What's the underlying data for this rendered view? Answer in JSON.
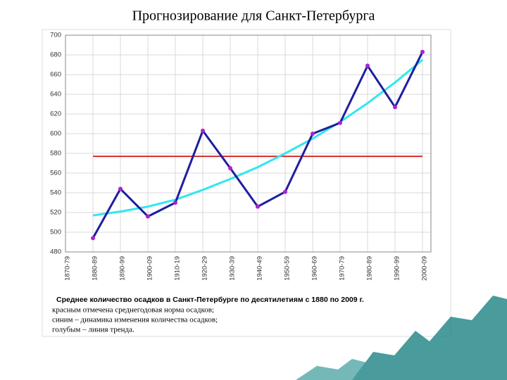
{
  "title": "Прогнозирование для Санкт-Петербурга",
  "chart_data": {
    "type": "line",
    "categories": [
      "1870-79",
      "1880-89",
      "1890-99",
      "1900-09",
      "1910-19",
      "1920-29",
      "1930-39",
      "1940-49",
      "1950-59",
      "1960-69",
      "1970-79",
      "1980-89",
      "1990-99",
      "2000-09"
    ],
    "series": [
      {
        "color": "#d42020",
        "values": [
          null,
          577,
          577,
          577,
          577,
          577,
          577,
          577,
          577,
          577,
          577,
          577,
          577,
          577
        ]
      },
      {
        "color": "#33e6f0",
        "values": [
          null,
          517,
          521,
          526,
          533,
          543,
          554,
          566,
          580,
          595,
          612,
          631,
          652,
          675
        ]
      },
      {
        "color": "#1e1e9e",
        "marker_color": "#b020d0",
        "values": [
          null,
          494,
          544,
          516,
          530,
          603,
          565,
          526,
          541,
          600,
          611,
          669,
          627,
          683
        ]
      }
    ],
    "ylim": [
      480,
      700
    ],
    "yticks": [
      480,
      500,
      520,
      540,
      560,
      580,
      600,
      620,
      640,
      660,
      680,
      700
    ],
    "grid": true,
    "caption": {
      "heading": "Среднее количество осадков в Санкт-Петербурге по десятилетиям с 1880 по 2009 г.",
      "lines": [
        "красным отмечена среднегодовая норма осадков;",
        "синим – динамика изменения количества осадков;",
        "голубым – линия тренда."
      ]
    }
  }
}
